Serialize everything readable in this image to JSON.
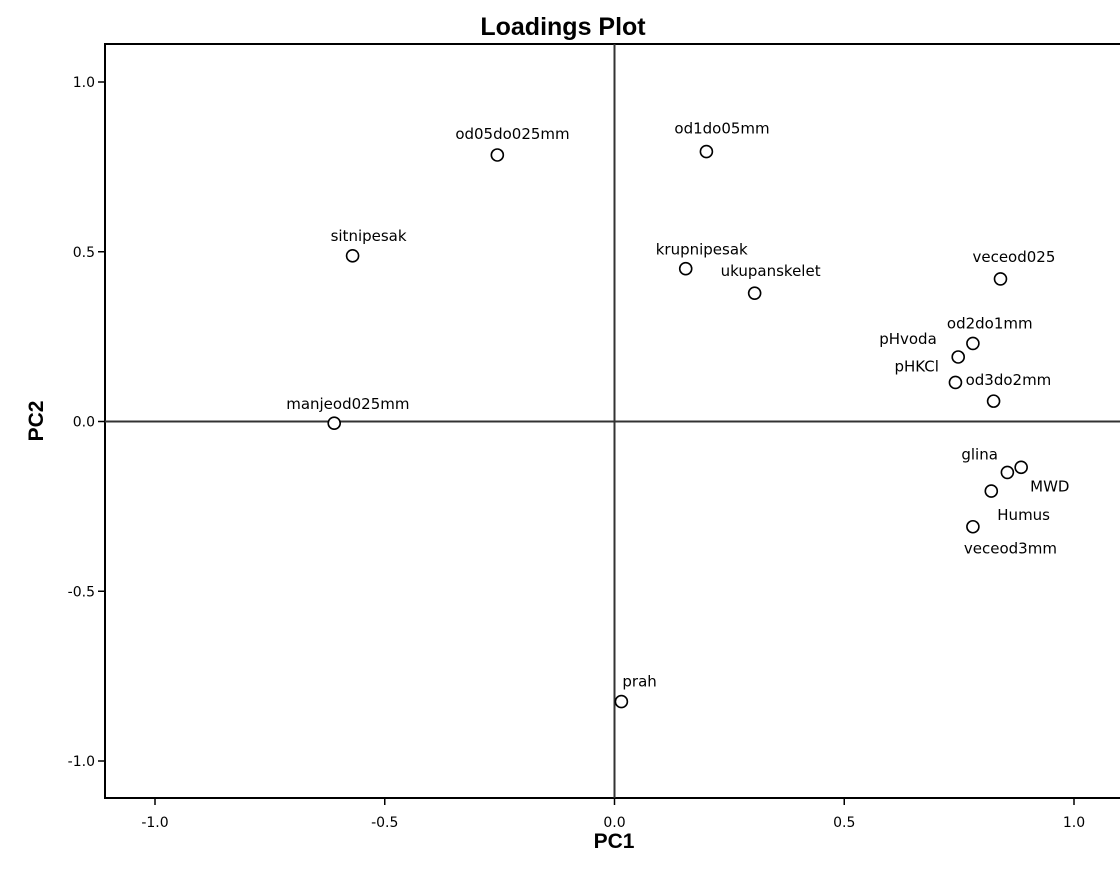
{
  "chart_data": {
    "type": "scatter",
    "title": "Loadings Plot",
    "xlabel": "PC1",
    "ylabel": "PC2",
    "xlim": [
      -1.11,
      1.11
    ],
    "ylim": [
      -1.11,
      1.11
    ],
    "x_ticks": [
      -1.0,
      -0.5,
      0.0,
      0.5,
      1.0
    ],
    "y_ticks": [
      -1.0,
      -0.5,
      0.0,
      0.5,
      1.0
    ],
    "x_tick_labels": [
      "-1.0",
      "-0.5",
      "0.0",
      "0.5",
      "1.0"
    ],
    "y_tick_labels": [
      "-1.0",
      "-0.5",
      "0.0",
      "0.5",
      "1.0"
    ],
    "reference_lines": {
      "x": 0,
      "y": 0
    },
    "marker": "open-circle",
    "grid": false,
    "legend": false,
    "points": [
      {
        "label": "od05do025mm",
        "x": -0.255,
        "y": 0.785
      },
      {
        "label": "od1do05mm",
        "x": 0.2,
        "y": 0.795
      },
      {
        "label": "sitnipesak",
        "x": -0.57,
        "y": 0.488
      },
      {
        "label": "krupnipesak",
        "x": 0.155,
        "y": 0.45
      },
      {
        "label": "ukupanskelet",
        "x": 0.305,
        "y": 0.378
      },
      {
        "label": "veceod025",
        "x": 0.84,
        "y": 0.42
      },
      {
        "label": "od2do1mm",
        "x": 0.78,
        "y": 0.23
      },
      {
        "label": "pHvoda",
        "x": 0.748,
        "y": 0.19
      },
      {
        "label": "pHKCl",
        "x": 0.742,
        "y": 0.115
      },
      {
        "label": "od3do2mm",
        "x": 0.825,
        "y": 0.06
      },
      {
        "label": "manjeod025mm",
        "x": -0.61,
        "y": -0.005
      },
      {
        "label": "glina",
        "x": 0.855,
        "y": -0.15
      },
      {
        "label": "MWD",
        "x": 0.885,
        "y": -0.135
      },
      {
        "label": "Humus",
        "x": 0.82,
        "y": -0.205
      },
      {
        "label": "veceod3mm",
        "x": 0.78,
        "y": -0.31
      },
      {
        "label": "prah",
        "x": 0.015,
        "y": -0.825
      }
    ]
  }
}
